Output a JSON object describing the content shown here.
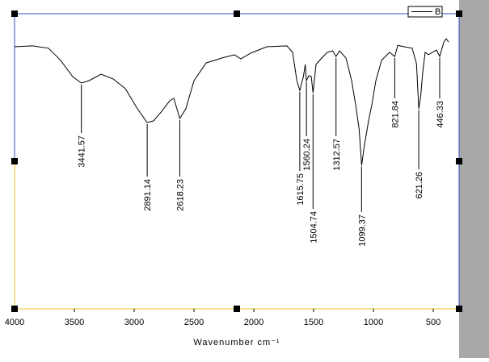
{
  "chart_data": {
    "type": "line",
    "xlabel": "Wavenumber cm⁻¹",
    "xlim": [
      4000,
      284
    ],
    "xticks": [
      4000,
      3500,
      3000,
      2500,
      2000,
      1500,
      1000,
      500
    ],
    "ylim": [
      0,
      100
    ],
    "x": [
      4000,
      3851,
      3716,
      3615,
      3514,
      3442,
      3378,
      3277,
      3176,
      3074,
      2973,
      2891,
      2838,
      2770,
      2703,
      2669,
      2618,
      2568,
      2500,
      2399,
      2264,
      2162,
      2108,
      2027,
      1892,
      1723,
      1676,
      1640,
      1616,
      1585,
      1570,
      1560,
      1540,
      1520,
      1505,
      1480,
      1432,
      1385,
      1340,
      1313,
      1284,
      1230,
      1182,
      1149,
      1120,
      1099,
      1075,
      1041,
      1014,
      980,
      932,
      865,
      822,
      797,
      743,
      676,
      640,
      621,
      605,
      588,
      568,
      541,
      473,
      446,
      412,
      392,
      372
    ],
    "series": [
      {
        "name": "B",
        "color": "#000000",
        "values": [
          88.8,
          89.1,
          88.3,
          84.2,
          78.7,
          76.5,
          77.3,
          79.5,
          77.9,
          74.6,
          67.8,
          63.1,
          63.7,
          66.9,
          70.5,
          71.3,
          64.5,
          67.8,
          77.3,
          83.3,
          85.0,
          86.1,
          84.7,
          86.6,
          88.8,
          89.1,
          86.9,
          77.3,
          74.0,
          78.7,
          82.8,
          77.3,
          79,
          78.7,
          73.2,
          82.8,
          85,
          86.9,
          87.4,
          85.5,
          87.4,
          85,
          77.3,
          69.1,
          60.9,
          48.6,
          55.5,
          63.7,
          69.1,
          77.3,
          84.2,
          86.9,
          85.5,
          89.3,
          88.8,
          88.3,
          83,
          67.8,
          72,
          80.1,
          86.9,
          86.1,
          87.7,
          85.5,
          90.4,
          91.5,
          90.4
        ]
      }
    ],
    "annotations": [
      3441.57,
      2891.14,
      2618.23,
      1615.75,
      1560.24,
      1504.74,
      1312.57,
      1099.37,
      821.84,
      621.26,
      446.33
    ]
  }
}
